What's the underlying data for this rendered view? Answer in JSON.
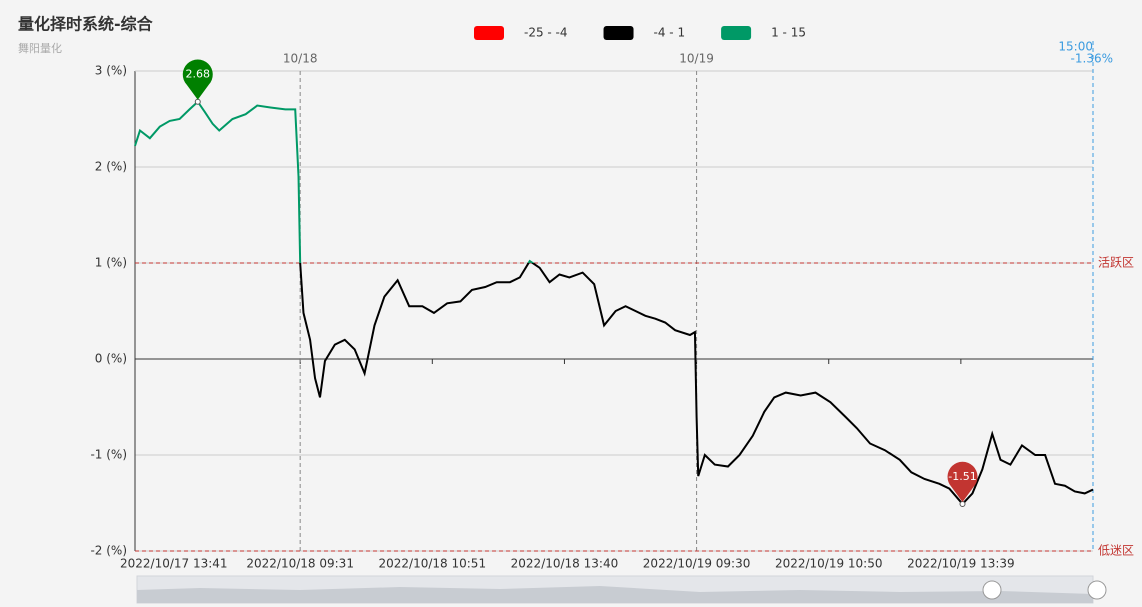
{
  "chart_data": {
    "type": "line",
    "title": "量化择时系统-综合",
    "subtitle": "舞阳量化",
    "x": [
      0,
      3,
      9,
      15,
      21,
      27,
      33,
      38,
      42,
      47,
      51,
      59,
      67,
      74,
      82,
      91,
      97,
      99,
      100,
      102,
      106,
      109,
      112,
      115,
      121,
      127,
      133,
      139,
      145,
      151,
      159,
      166,
      174,
      181,
      189,
      197,
      204,
      212,
      219,
      227,
      233,
      239,
      245,
      251,
      257,
      263,
      271,
      278,
      284,
      291,
      297,
      303,
      309,
      315,
      321,
      327,
      336,
      339,
      340,
      341,
      345,
      351,
      359,
      366,
      374,
      381,
      387,
      394,
      403,
      412,
      421,
      430,
      437,
      445,
      454,
      463,
      470,
      478,
      487,
      493,
      501,
      507,
      513,
      519,
      524,
      530,
      537,
      545,
      551,
      557,
      563,
      569,
      575,
      580
    ],
    "series": [
      {
        "name": "综合",
        "values": [
          2.22,
          2.38,
          2.3,
          2.42,
          2.48,
          2.5,
          2.6,
          2.68,
          2.58,
          2.45,
          2.38,
          2.5,
          2.55,
          2.64,
          2.62,
          2.6,
          2.6,
          1.9,
          1.0,
          0.48,
          0.2,
          -0.2,
          -0.4,
          -0.02,
          0.15,
          0.2,
          0.1,
          -0.15,
          0.35,
          0.65,
          0.82,
          0.55,
          0.55,
          0.48,
          0.58,
          0.6,
          0.72,
          0.75,
          0.8,
          0.8,
          0.85,
          1.02,
          0.95,
          0.8,
          0.88,
          0.85,
          0.9,
          0.78,
          0.35,
          0.5,
          0.55,
          0.5,
          0.45,
          0.42,
          0.38,
          0.3,
          0.25,
          0.28,
          -0.6,
          -1.22,
          -1.0,
          -1.1,
          -1.12,
          -1.0,
          -0.8,
          -0.55,
          -0.4,
          -0.35,
          -0.38,
          -0.35,
          -0.45,
          -0.6,
          -0.72,
          -0.88,
          -0.95,
          -1.05,
          -1.18,
          -1.25,
          -1.3,
          -1.35,
          -1.51,
          -1.4,
          -1.15,
          -0.78,
          -1.05,
          -1.1,
          -0.9,
          -1.0,
          -1.0,
          -1.3,
          -1.32,
          -1.38,
          -1.4,
          -1.36
        ]
      }
    ],
    "xlim": [
      0,
      580
    ],
    "ylim": [
      -2,
      3
    ],
    "yticks": [
      {
        "value": -2,
        "label": "-2 (%)"
      },
      {
        "value": -1,
        "label": "-1 (%)"
      },
      {
        "value": 0,
        "label": "0 (%)"
      },
      {
        "value": 1,
        "label": "1 (%)"
      },
      {
        "value": 2,
        "label": "2 (%)"
      },
      {
        "value": 3,
        "label": "3 (%)"
      }
    ],
    "xticks": [
      {
        "value": 0,
        "label": "2022/10/17 13:41"
      },
      {
        "value": 100,
        "label": "2022/10/18 09:31"
      },
      {
        "value": 180,
        "label": "2022/10/18 10:51"
      },
      {
        "value": 260,
        "label": "2022/10/18 13:40"
      },
      {
        "value": 340,
        "label": "2022/10/19 09:30"
      },
      {
        "value": 420,
        "label": "2022/10/19 10:50"
      },
      {
        "value": 500,
        "label": "2022/10/19 13:39"
      }
    ],
    "grid": true,
    "visual_pieces": [
      {
        "min": -25,
        "max": -4,
        "label": "-25 - -4",
        "color": "#ff0000"
      },
      {
        "min": -4,
        "max": 1,
        "label": "-4 - 1",
        "color": "#000000"
      },
      {
        "min": 1,
        "max": 15,
        "label": "1 - 15",
        "color": "#009966"
      }
    ],
    "mark_lines": [
      {
        "value": 1,
        "label": "活跃区",
        "color": "#c23531"
      },
      {
        "value": -2,
        "label": "低迷区",
        "color": "#c23531"
      }
    ],
    "mark_points": [
      {
        "x": 38,
        "value": 2.68,
        "color": "#008000"
      },
      {
        "x": 501,
        "value": -1.51,
        "color": "#c23531"
      }
    ],
    "day_lines": [
      {
        "x": 100,
        "label": "10/18"
      },
      {
        "x": 340,
        "label": "10/19"
      }
    ],
    "end_marker": {
      "x": 580,
      "time": "15:00",
      "value": {
        "value": -1.36,
        "label": "-1.36%"
      }
    }
  }
}
